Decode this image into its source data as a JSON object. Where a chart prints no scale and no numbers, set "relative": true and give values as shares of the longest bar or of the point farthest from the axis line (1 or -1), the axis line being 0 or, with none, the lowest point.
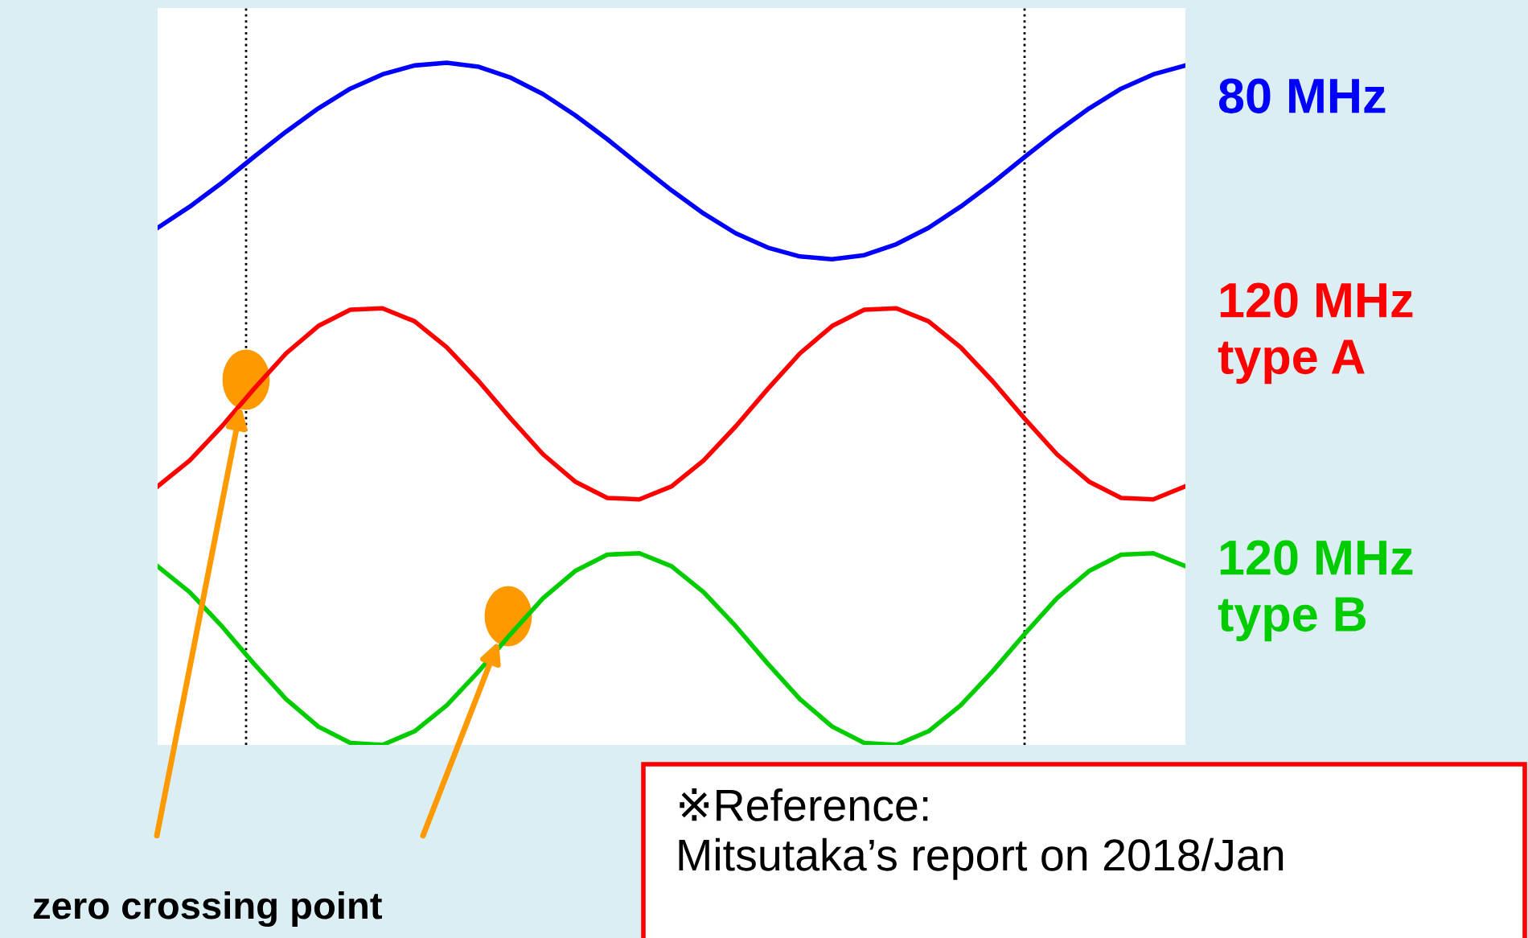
{
  "chart_data": {
    "type": "line",
    "relative": true,
    "categories": [
      null,
      null,
      null,
      null,
      null,
      null,
      null,
      null,
      null,
      null,
      null,
      null,
      null,
      null,
      null,
      null,
      null,
      null,
      null,
      null,
      null,
      null,
      null,
      null,
      null,
      null,
      null,
      null,
      null,
      null,
      null,
      null,
      null
    ],
    "series": [
      {
        "name": "80 MHz",
        "color": "#0000ff",
        "values": [
          0.758,
          0.789,
          0.824,
          0.862,
          0.899,
          0.933,
          0.962,
          0.983,
          0.996,
          1.0,
          0.994,
          0.978,
          0.954,
          0.923,
          0.888,
          0.85,
          0.813,
          0.779,
          0.75,
          0.729,
          0.716,
          0.712,
          0.718,
          0.734,
          0.758,
          0.789,
          0.824,
          0.862,
          0.899,
          0.933,
          0.962,
          0.983,
          0.996
        ]
      },
      {
        "name": "120 MHz\ntype A",
        "color": "#ff0000",
        "values": [
          0.379,
          0.417,
          0.467,
          0.522,
          0.574,
          0.614,
          0.638,
          0.64,
          0.621,
          0.583,
          0.533,
          0.478,
          0.426,
          0.386,
          0.362,
          0.36,
          0.379,
          0.417,
          0.467,
          0.522,
          0.574,
          0.614,
          0.638,
          0.64,
          0.621,
          0.583,
          0.533,
          0.478,
          0.426,
          0.386,
          0.362,
          0.36,
          0.379
        ]
      },
      {
        "name": "120 MHz\ntype B",
        "color": "#00cc00",
        "values": [
          0.262,
          0.224,
          0.174,
          0.119,
          0.067,
          0.027,
          0.003,
          0.0,
          0.02,
          0.058,
          0.108,
          0.163,
          0.215,
          0.255,
          0.279,
          0.281,
          0.262,
          0.224,
          0.174,
          0.119,
          0.067,
          0.027,
          0.003,
          0.0,
          0.02,
          0.058,
          0.108,
          0.163,
          0.215,
          0.255,
          0.279,
          0.281,
          0.262
        ]
      }
    ],
    "annotations": [
      "zero crossing point",
      "※Reference:\nMitsutaka’s report on 2018/Jan"
    ],
    "marker": "none",
    "line_style": "solid",
    "legend": false
  }
}
